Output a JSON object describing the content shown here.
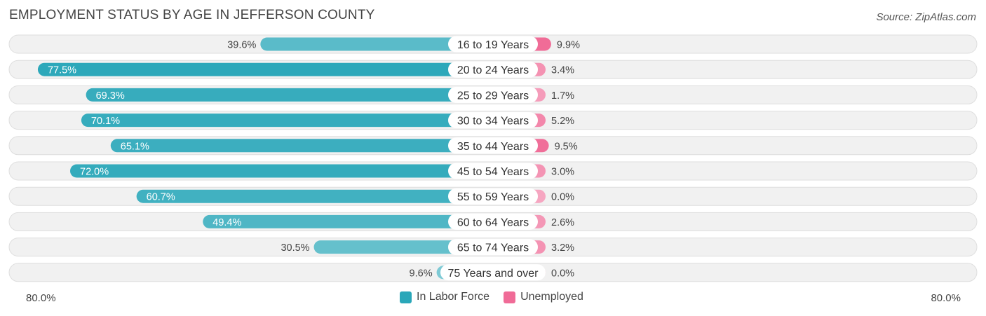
{
  "title": "EMPLOYMENT STATUS BY AGE IN JEFFERSON COUNTY",
  "source": "Source: ZipAtlas.com",
  "axis": {
    "left_label": "80.0%",
    "right_label": "80.0%"
  },
  "legend": {
    "labor": {
      "label": "In Labor Force",
      "color": "#2aa7b9"
    },
    "unemployed": {
      "label": "Unemployed",
      "color": "#f06b97"
    }
  },
  "chart_data": {
    "type": "bar",
    "orientation": "diverging-horizontal",
    "title": "EMPLOYMENT STATUS BY AGE IN JEFFERSON COUNTY",
    "categories": [
      "16 to 19 Years",
      "20 to 24 Years",
      "25 to 29 Years",
      "30 to 34 Years",
      "35 to 44 Years",
      "45 to 54 Years",
      "55 to 59 Years",
      "60 to 64 Years",
      "65 to 74 Years",
      "75 Years and over"
    ],
    "series": [
      {
        "name": "In Labor Force",
        "values": [
          39.6,
          77.5,
          69.3,
          70.1,
          65.1,
          72.0,
          60.7,
          49.4,
          30.5,
          9.6
        ],
        "labels": [
          "39.6%",
          "77.5%",
          "69.3%",
          "70.1%",
          "65.1%",
          "72.0%",
          "60.7%",
          "49.4%",
          "30.5%",
          "9.6%"
        ]
      },
      {
        "name": "Unemployed",
        "values": [
          9.9,
          3.4,
          1.7,
          5.2,
          9.5,
          3.0,
          0.0,
          2.6,
          3.2,
          0.0
        ],
        "labels": [
          "9.9%",
          "3.4%",
          "1.7%",
          "5.2%",
          "9.5%",
          "3.0%",
          "0.0%",
          "2.6%",
          "3.2%",
          "0.0%"
        ]
      }
    ],
    "xlim_left": [
      0,
      80
    ],
    "xlim_right": [
      0,
      80
    ],
    "legend_position": "bottom-center"
  }
}
